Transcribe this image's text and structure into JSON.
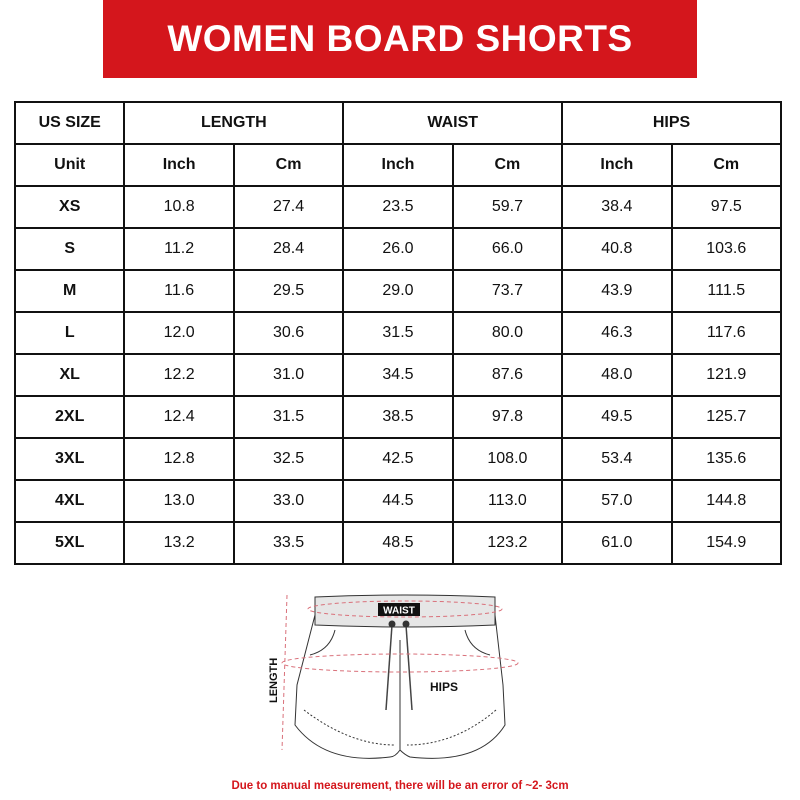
{
  "title": "WOMEN BOARD SHORTS",
  "table": {
    "group_headers": [
      "US SIZE",
      "LENGTH",
      "WAIST",
      "HIPS"
    ],
    "unit_row": [
      "Unit",
      "Inch",
      "Cm",
      "Inch",
      "Cm",
      "Inch",
      "Cm"
    ],
    "rows": [
      [
        "XS",
        "10.8",
        "27.4",
        "23.5",
        "59.7",
        "38.4",
        "97.5"
      ],
      [
        "S",
        "11.2",
        "28.4",
        "26.0",
        "66.0",
        "40.8",
        "103.6"
      ],
      [
        "M",
        "11.6",
        "29.5",
        "29.0",
        "73.7",
        "43.9",
        "111.5"
      ],
      [
        "L",
        "12.0",
        "30.6",
        "31.5",
        "80.0",
        "46.3",
        "117.6"
      ],
      [
        "XL",
        "12.2",
        "31.0",
        "34.5",
        "87.6",
        "48.0",
        "121.9"
      ],
      [
        "2XL",
        "12.4",
        "31.5",
        "38.5",
        "97.8",
        "49.5",
        "125.7"
      ],
      [
        "3XL",
        "12.8",
        "32.5",
        "42.5",
        "108.0",
        "53.4",
        "135.6"
      ],
      [
        "4XL",
        "13.0",
        "33.0",
        "44.5",
        "113.0",
        "57.0",
        "144.8"
      ],
      [
        "5XL",
        "13.2",
        "33.5",
        "48.5",
        "123.2",
        "61.0",
        "154.9"
      ]
    ]
  },
  "diagram": {
    "waist_label": "WAIST",
    "hips_label": "HIPS",
    "length_label": "LENGTH"
  },
  "note": "Due to manual measurement, there will be an error of ~2- 3cm",
  "colors": {
    "accent": "#d4161c",
    "dashed_line": "#d9707a"
  }
}
